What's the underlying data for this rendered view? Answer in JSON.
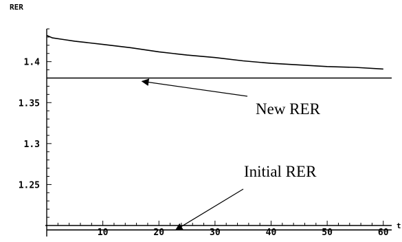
{
  "chart_data": {
    "type": "line",
    "xlabel": "t",
    "ylabel": "RER",
    "xlim": [
      0,
      61.5
    ],
    "ylim": [
      1.2,
      1.44
    ],
    "x_ticks": [
      10,
      20,
      30,
      40,
      50,
      60
    ],
    "x_tick_labels": [
      "10",
      "20",
      "30",
      "40",
      "50",
      "60"
    ],
    "y_ticks": [
      1.25,
      1.3,
      1.35,
      1.4
    ],
    "y_tick_labels": [
      "1.25",
      "1.3",
      "1.35",
      "1.4"
    ],
    "grid": false,
    "legend": "none",
    "series": [
      {
        "x": [
          0,
          1,
          3,
          5,
          10,
          15,
          20,
          25,
          30,
          35,
          40,
          45,
          50,
          55,
          60
        ],
        "y": [
          1.432,
          1.429,
          1.427,
          1.425,
          1.421,
          1.417,
          1.412,
          1.408,
          1.405,
          1.401,
          1.398,
          1.396,
          1.394,
          1.393,
          1.391
        ],
        "color": "#000000"
      },
      {
        "x": [
          0,
          61.5
        ],
        "y": [
          1.38,
          1.38
        ],
        "color": "#000000"
      },
      {
        "x": [
          0,
          61.5
        ],
        "y": [
          1.1946,
          1.1946
        ],
        "color": "#000000"
      }
    ],
    "annotations": [
      {
        "text": "New RER",
        "arrow_to": [
          17,
          1.376
        ]
      },
      {
        "text": "Initial RER",
        "arrow_to": [
          23,
          1.1946
        ]
      }
    ]
  }
}
